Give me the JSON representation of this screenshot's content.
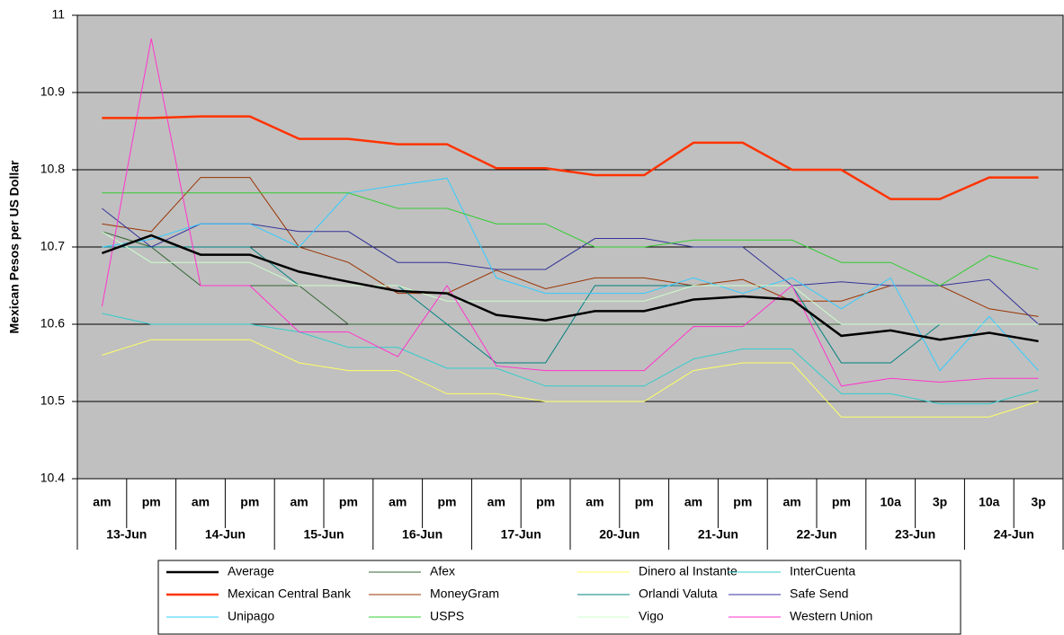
{
  "chart_data": {
    "type": "line",
    "y_label": "Mexican Pesos per US Dollar",
    "categories": [
      "am",
      "pm",
      "am",
      "pm",
      "am",
      "pm",
      "am",
      "pm",
      "am",
      "pm",
      "am",
      "pm",
      "am",
      "pm",
      "am",
      "pm",
      "10a",
      "3p",
      "10a",
      "3p"
    ],
    "category_groups": [
      "13-Jun",
      "14-Jun",
      "15-Jun",
      "16-Jun",
      "17-Jun",
      "20-Jun",
      "21-Jun",
      "22-Jun",
      "23-Jun",
      "24-Jun"
    ],
    "ylim": [
      10.4,
      11
    ],
    "yticks": [
      10.4,
      10.5,
      10.6,
      10.7,
      10.8,
      10.9,
      11
    ],
    "grid": true,
    "series": [
      {
        "name": "Average",
        "color": "#000000",
        "values": [
          10.692,
          10.715,
          10.69,
          10.69,
          10.668,
          10.655,
          10.643,
          10.64,
          10.612,
          10.605,
          10.617,
          10.617,
          10.632,
          10.636,
          10.632,
          10.585,
          10.592,
          10.58,
          10.589,
          10.578
        ]
      },
      {
        "name": "Afex",
        "color": "#336633",
        "values": [
          10.72,
          10.7,
          10.65,
          10.65,
          10.65,
          10.6,
          10.6,
          10.6,
          10.6,
          10.6,
          10.6,
          10.6,
          10.6,
          10.6,
          10.6,
          10.6,
          10.6,
          10.6,
          10.6,
          10.6
        ]
      },
      {
        "name": "Dinero al Instante",
        "color": "#ffff66",
        "values": [
          10.56,
          10.58,
          10.58,
          10.58,
          10.55,
          10.54,
          10.54,
          10.51,
          10.51,
          10.5,
          10.5,
          10.5,
          10.54,
          10.55,
          10.55,
          10.48,
          10.48,
          10.48,
          10.48,
          10.5
        ]
      },
      {
        "name": "InterCuenta",
        "color": "#33cccc",
        "values": [
          10.614,
          10.6,
          10.6,
          10.6,
          10.59,
          10.57,
          10.57,
          10.543,
          10.543,
          10.52,
          10.52,
          10.52,
          10.555,
          10.568,
          10.568,
          10.51,
          10.51,
          10.497,
          10.497,
          10.515
        ]
      },
      {
        "name": "Mexican Central Bank",
        "color": "#ff3300",
        "values": [
          10.867,
          10.867,
          10.869,
          10.869,
          10.84,
          10.84,
          10.833,
          10.833,
          10.802,
          10.802,
          10.793,
          10.793,
          10.835,
          10.835,
          10.8,
          10.8,
          10.762,
          10.762,
          10.79,
          10.79
        ]
      },
      {
        "name": "MoneyGram",
        "color": "#993300",
        "values": [
          10.73,
          10.72,
          10.79,
          10.79,
          10.7,
          10.68,
          10.64,
          10.64,
          10.67,
          10.646,
          10.66,
          10.66,
          10.65,
          10.658,
          10.63,
          10.63,
          10.65,
          10.65,
          10.62,
          10.61
        ]
      },
      {
        "name": "Orlandi Valuta",
        "color": "#008080",
        "values": [
          10.7,
          10.7,
          10.7,
          10.7,
          10.65,
          10.65,
          10.65,
          10.6,
          10.55,
          10.55,
          10.65,
          10.65,
          10.65,
          10.65,
          10.65,
          10.55,
          10.55,
          10.6,
          10.6,
          10.6
        ]
      },
      {
        "name": "Safe Send",
        "color": "#333399",
        "values": [
          10.75,
          10.7,
          10.73,
          10.73,
          10.72,
          10.72,
          10.68,
          10.68,
          10.671,
          10.671,
          10.711,
          10.711,
          10.7,
          10.7,
          10.65,
          10.655,
          10.65,
          10.65,
          10.658,
          10.6
        ]
      },
      {
        "name": "Unipago",
        "color": "#33ccff",
        "values": [
          10.7,
          10.71,
          10.73,
          10.73,
          10.7,
          10.77,
          10.78,
          10.789,
          10.66,
          10.64,
          10.64,
          10.64,
          10.66,
          10.64,
          10.66,
          10.62,
          10.66,
          10.54,
          10.61,
          10.54
        ]
      },
      {
        "name": "USPS",
        "color": "#33cc33",
        "values": [
          10.77,
          10.77,
          10.77,
          10.77,
          10.77,
          10.77,
          10.75,
          10.75,
          10.73,
          10.73,
          10.7,
          10.7,
          10.709,
          10.709,
          10.709,
          10.68,
          10.68,
          10.65,
          10.689,
          10.671
        ]
      },
      {
        "name": "Vigo",
        "color": "#ccffcc",
        "values": [
          10.72,
          10.68,
          10.68,
          10.68,
          10.65,
          10.65,
          10.65,
          10.63,
          10.63,
          10.63,
          10.63,
          10.63,
          10.65,
          10.65,
          10.65,
          10.6,
          10.6,
          10.6,
          10.6,
          10.6
        ]
      },
      {
        "name": "Western Union",
        "color": "#ff33cc",
        "values": [
          10.623,
          10.97,
          10.65,
          10.65,
          10.59,
          10.59,
          10.558,
          10.65,
          10.546,
          10.54,
          10.54,
          10.54,
          10.597,
          10.597,
          10.65,
          10.52,
          10.53,
          10.525,
          10.53,
          10.53
        ]
      }
    ]
  }
}
